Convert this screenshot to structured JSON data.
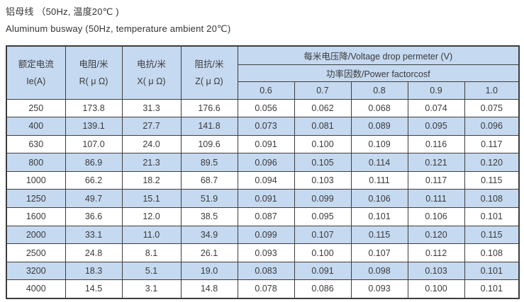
{
  "page": {
    "title_zh": "铝母线 （50Hz, 温度20℃ )",
    "title_en": "Aluminum busway (50Hz, temperature ambient 20℃)"
  },
  "table": {
    "headers": {
      "current_zh": "额定电流",
      "current_en": "Ie(A)",
      "resistance_zh": "电阻/米",
      "resistance_en": "R( μ Ω)",
      "reactance_zh": "电抗/米",
      "reactance_en": "X( μ Ω)",
      "impedance_zh": "阻抗/米",
      "impedance_en": "Z( μ Ω)",
      "voltage_drop": "每米电压降/Voltage drop permeter (V)",
      "power_factor": "功率因数/Power factorcosf",
      "pf_values": [
        "0.6",
        "0.7",
        "0.8",
        "0.9",
        "1.0"
      ]
    },
    "rows": [
      {
        "ie": "250",
        "r": "173.8",
        "x": "31.3",
        "z": "176.6",
        "vd": [
          "0.056",
          "0.062",
          "0.068",
          "0.074",
          "0.075"
        ]
      },
      {
        "ie": "400",
        "r": "139.1",
        "x": "27.7",
        "z": "141.8",
        "vd": [
          "0.073",
          "0.081",
          "0.089",
          "0.095",
          "0.096"
        ]
      },
      {
        "ie": "630",
        "r": "107.0",
        "x": "24.0",
        "z": "109.6",
        "vd": [
          "0.091",
          "0.100",
          "0.109",
          "0.116",
          "0.117"
        ]
      },
      {
        "ie": "800",
        "r": "86.9",
        "x": "21.3",
        "z": "89.5",
        "vd": [
          "0.096",
          "0.105",
          "0.114",
          "0.121",
          "0.120"
        ]
      },
      {
        "ie": "1000",
        "r": "66.2",
        "x": "18.2",
        "z": "68.7",
        "vd": [
          "0.094",
          "0.103",
          "0.111",
          "0.117",
          "0.115"
        ]
      },
      {
        "ie": "1250",
        "r": "49.7",
        "x": "15.1",
        "z": "51.9",
        "vd": [
          "0.091",
          "0.099",
          "0.106",
          "0.111",
          "0.108"
        ]
      },
      {
        "ie": "1600",
        "r": "36.6",
        "x": "12.0",
        "z": "38.5",
        "vd": [
          "0.087",
          "0.095",
          "0.101",
          "0.106",
          "0.101"
        ]
      },
      {
        "ie": "2000",
        "r": "33.1",
        "x": "11.0",
        "z": "34.9",
        "vd": [
          "0.099",
          "0.107",
          "0.115",
          "0.120",
          "0.115"
        ]
      },
      {
        "ie": "2500",
        "r": "24.8",
        "x": "8.1",
        "z": "26.1",
        "vd": [
          "0.093",
          "0.100",
          "0.107",
          "0.112",
          "0.108"
        ]
      },
      {
        "ie": "3200",
        "r": "18.3",
        "x": "5.1",
        "z": "19.0",
        "vd": [
          "0.083",
          "0.091",
          "0.098",
          "0.103",
          "0.101"
        ]
      },
      {
        "ie": "4000",
        "r": "14.5",
        "x": "3.1",
        "z": "14.8",
        "vd": [
          "0.078",
          "0.086",
          "0.093",
          "0.100",
          "0.101"
        ]
      }
    ]
  },
  "colors": {
    "header_bg": "#c5d9f0",
    "alt_row_bg": "#c5d9f0",
    "border": "#3d3d3d",
    "text": "#3b3b3b"
  }
}
